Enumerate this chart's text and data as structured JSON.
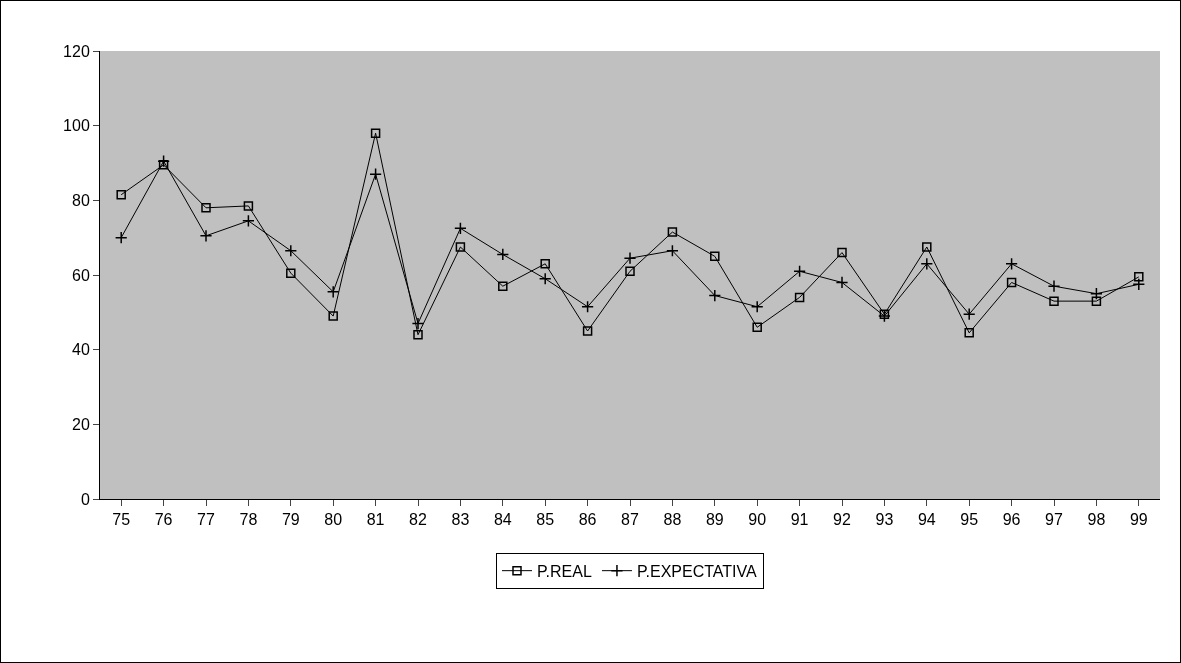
{
  "chart_data": {
    "type": "line",
    "categories": [
      "75",
      "76",
      "77",
      "78",
      "79",
      "80",
      "81",
      "82",
      "83",
      "84",
      "85",
      "86",
      "87",
      "88",
      "89",
      "90",
      "91",
      "92",
      "93",
      "94",
      "95",
      "96",
      "97",
      "98",
      "99"
    ],
    "series": [
      {
        "name": "P.REAL",
        "color": "#000000",
        "marker": "square",
        "values": [
          81.5,
          89.5,
          78,
          78.5,
          60.5,
          49,
          98,
          44,
          67.5,
          57,
          63,
          45,
          61,
          71.5,
          65,
          46,
          54,
          66,
          49.5,
          67.5,
          44.5,
          58,
          53,
          53,
          59.5
        ]
      },
      {
        "name": "P.EXPECTATIVA",
        "color": "#000000",
        "marker": "cross",
        "values": [
          70,
          90.5,
          70.5,
          74.5,
          66.5,
          55.5,
          87,
          47,
          72.5,
          65.5,
          59,
          51.5,
          64.5,
          66.5,
          54.5,
          51.5,
          61,
          58,
          49,
          63,
          49.5,
          63,
          57,
          55,
          57.5
        ]
      }
    ],
    "ylim": [
      0,
      120
    ],
    "yticks": [
      0,
      20,
      40,
      60,
      80,
      100,
      120
    ],
    "grid": false,
    "legend": "bottom",
    "line_style": "solid"
  }
}
